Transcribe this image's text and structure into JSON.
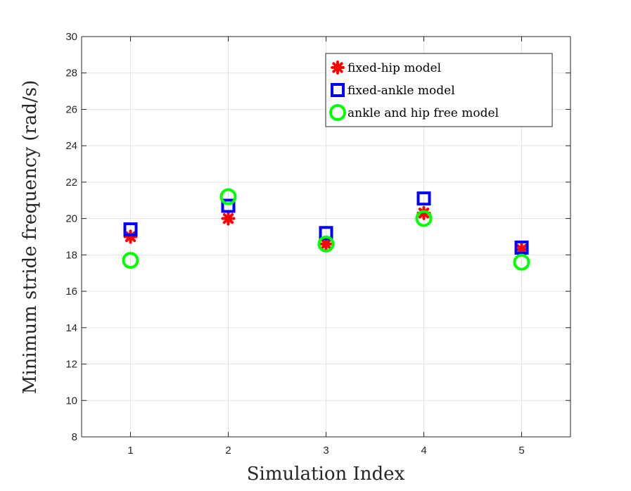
{
  "chart_data": {
    "type": "scatter",
    "title": "",
    "xlabel": "Simulation Index",
    "ylabel": "Minimum stride frequency (rad/s)",
    "xlim": [
      0.5,
      5.5
    ],
    "ylim": [
      8,
      30
    ],
    "xticks": [
      1,
      2,
      3,
      4,
      5
    ],
    "yticks": [
      8,
      10,
      12,
      14,
      16,
      18,
      20,
      22,
      24,
      26,
      28,
      30
    ],
    "grid": true,
    "legend_position": "top-right",
    "series": [
      {
        "name": "fixed-hip model",
        "marker": "asterisk",
        "color": "#ff0000",
        "x": [
          1,
          2,
          3,
          4,
          5
        ],
        "values": [
          19.0,
          20.0,
          18.6,
          20.3,
          18.3
        ]
      },
      {
        "name": "fixed-ankle model",
        "marker": "square",
        "color": "#0000ff",
        "x": [
          1,
          2,
          3,
          4,
          5
        ],
        "values": [
          19.4,
          20.7,
          19.2,
          21.1,
          18.4
        ]
      },
      {
        "name": "ankle and hip free model",
        "marker": "circle",
        "color": "#00ff00",
        "x": [
          1,
          2,
          3,
          4,
          5
        ],
        "values": [
          17.7,
          21.2,
          18.6,
          20.0,
          17.6
        ]
      }
    ]
  }
}
